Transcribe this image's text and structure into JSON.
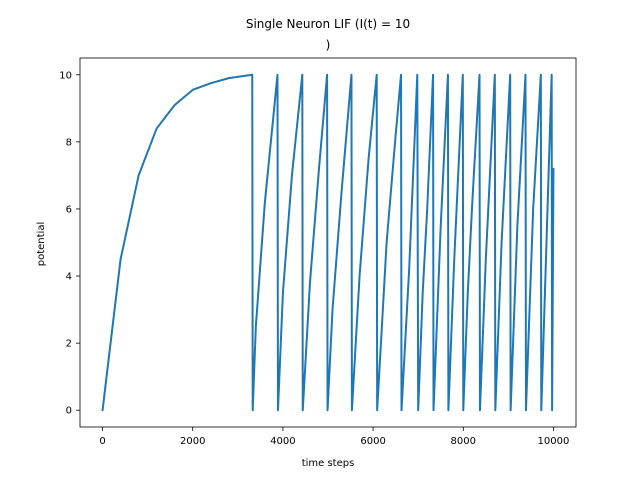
{
  "chart_data": {
    "type": "line",
    "title_lines": [
      "Single Neuron LIF (I(t) = 10",
      ")"
    ],
    "xlabel": "time steps",
    "ylabel": "potential",
    "xlim": [
      -500,
      10500
    ],
    "ylim": [
      -0.5,
      10.5
    ],
    "xticks": [
      0,
      2000,
      4000,
      6000,
      8000,
      10000
    ],
    "yticks": [
      0,
      2,
      4,
      6,
      8,
      10
    ],
    "xtick_labels": [
      "0",
      "2000",
      "4000",
      "6000",
      "8000",
      "10000"
    ],
    "ytick_labels": [
      "0",
      "2",
      "4",
      "6",
      "8",
      "10"
    ],
    "grid": false,
    "line_color": "#1f77b4",
    "series": [
      {
        "x": [
          0,
          400,
          800,
          1200,
          1600,
          2000,
          2400,
          2800,
          3320,
          3330,
          3400,
          3600,
          3880,
          3890,
          4000,
          4200,
          4430,
          4440,
          4600,
          4800,
          4980,
          4990,
          5100,
          5300,
          5520,
          5530,
          5700,
          5900,
          6080,
          6090,
          6300,
          6500,
          6620,
          6630,
          6800,
          6980,
          7000,
          7100,
          7200,
          7330,
          7340,
          7500,
          7660,
          7670,
          7800,
          7990,
          8000,
          8100,
          8200,
          8360,
          8370,
          8500,
          8700,
          8710,
          8850,
          9040,
          9050,
          9200,
          9380,
          9390,
          9550,
          9720,
          9730,
          9850,
          9960,
          9970,
          10000
        ],
        "y": [
          0,
          4.5,
          7.0,
          8.4,
          9.1,
          9.55,
          9.75,
          9.9,
          10,
          0,
          2.5,
          6.2,
          10,
          0,
          3.5,
          7.0,
          10,
          0,
          3.8,
          7.2,
          10,
          0,
          3.0,
          6.5,
          10,
          0,
          4.0,
          7.5,
          10,
          0,
          5.0,
          8.2,
          10,
          0,
          4.2,
          10,
          0,
          3.5,
          6.0,
          10,
          0,
          5.5,
          10,
          0,
          4.5,
          10,
          0,
          3.5,
          6.2,
          10,
          0,
          4.5,
          10,
          0,
          5.0,
          10,
          0,
          5.5,
          10,
          0,
          6.0,
          10,
          0,
          5.2,
          10,
          0,
          7.2
        ]
      }
    ]
  }
}
